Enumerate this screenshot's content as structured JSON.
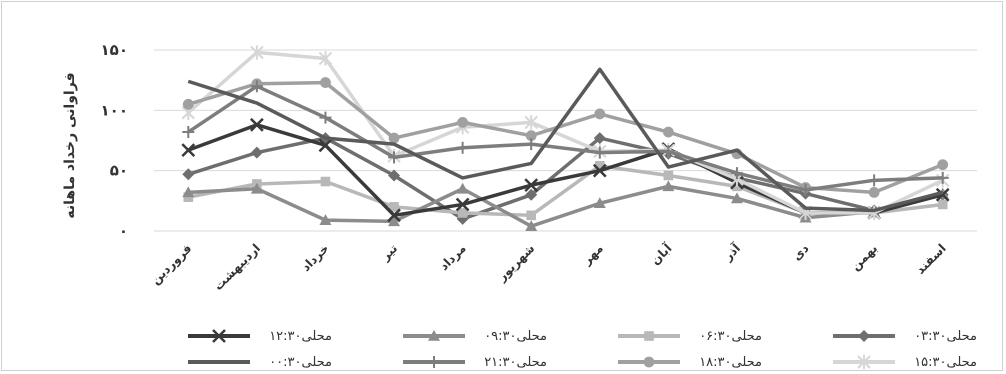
{
  "chart_data": {
    "type": "line",
    "ylabel": "فراوانی رخداد ماهانه",
    "ylim": [
      0,
      150
    ],
    "yticks": [
      "۰",
      "۵۰",
      "۱۰۰",
      "۱۵۰"
    ],
    "ytick_values": [
      0,
      50,
      100,
      150
    ],
    "grid": true,
    "legend_position": "bottom",
    "categories": [
      "فروردین",
      "اردیبهشت",
      "خرداد",
      "تیر",
      "مرداد",
      "شهریور",
      "مهر",
      "آبان",
      "آذر",
      "دی",
      "بهمن",
      "اسفند"
    ],
    "series": [
      {
        "name": "۰۳:۳۰محلی",
        "color": "#6e6e6e",
        "marker": "diamond",
        "values": [
          47,
          65,
          77,
          46,
          10,
          30,
          77,
          64,
          44,
          31,
          17,
          30
        ]
      },
      {
        "name": "۰۶:۳۰محلی",
        "color": "#b8b8b8",
        "marker": "square",
        "values": [
          28,
          39,
          41,
          20,
          15,
          13,
          54,
          46,
          37,
          15,
          15,
          22
        ]
      },
      {
        "name": "۰۹:۳۰محلی",
        "color": "#8c8c8c",
        "marker": "triangle",
        "values": [
          32,
          35,
          9,
          8,
          35,
          4,
          23,
          37,
          27,
          11,
          16,
          31
        ]
      },
      {
        "name": "۱۲:۳۰محلی",
        "color": "#3a3a3a",
        "marker": "x",
        "values": [
          67,
          88,
          71,
          13,
          22,
          38,
          50,
          68,
          40,
          15,
          15,
          30
        ]
      },
      {
        "name": "۱۵:۳۰محلی",
        "color": "#d6d6d6",
        "marker": "star",
        "values": [
          98,
          148,
          143,
          62,
          86,
          90,
          66,
          67,
          43,
          15,
          15,
          42
        ]
      },
      {
        "name": "۱۸:۳۰محلی",
        "color": "#a0a0a0",
        "marker": "circle",
        "values": [
          105,
          122,
          123,
          77,
          90,
          79,
          97,
          82,
          64,
          36,
          32,
          55
        ]
      },
      {
        "name": "۲۱:۳۰محلی",
        "color": "#7d7d7d",
        "marker": "plus",
        "values": [
          82,
          120,
          94,
          61,
          69,
          72,
          65,
          66,
          48,
          34,
          42,
          44
        ]
      },
      {
        "name": "۰۰:۳۰محلی",
        "color": "#5a5a5a",
        "marker": "none",
        "values": [
          124,
          106,
          77,
          72,
          44,
          56,
          134,
          53,
          67,
          19,
          17,
          32
        ]
      }
    ]
  }
}
